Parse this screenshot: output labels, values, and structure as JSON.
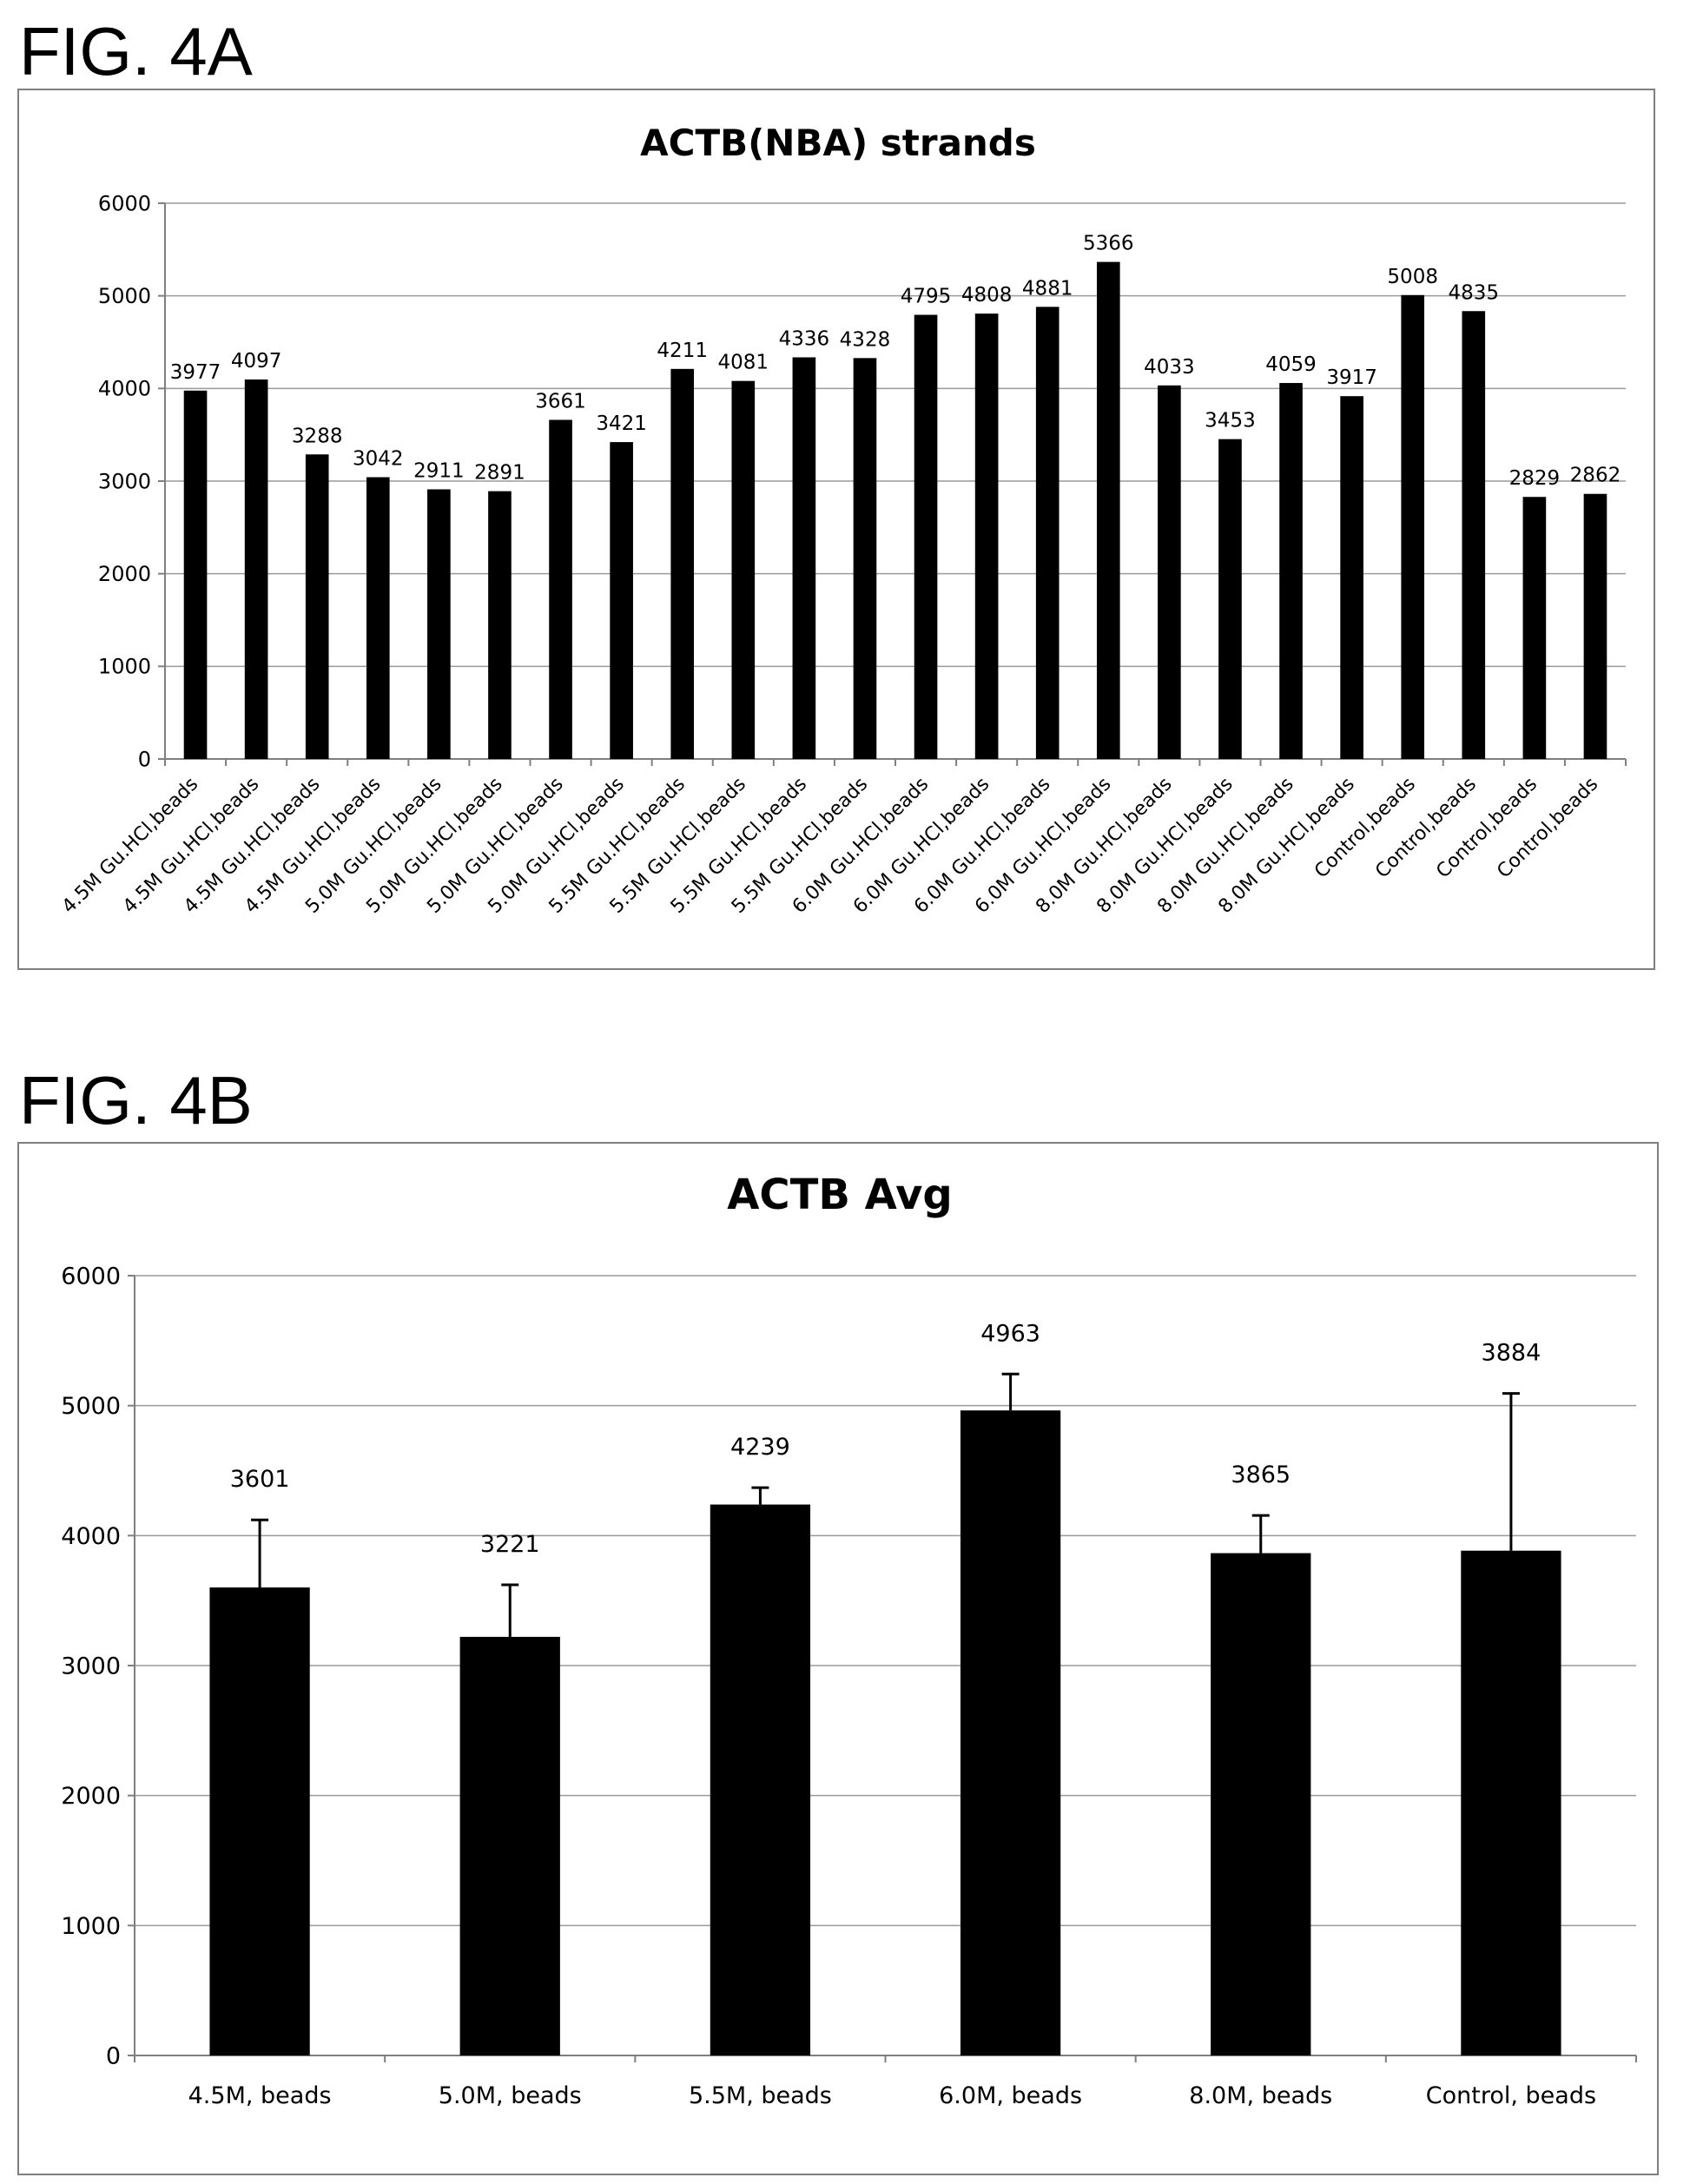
{
  "figures": {
    "a_label": "FIG. 4A",
    "b_label": "FIG. 4B"
  },
  "chart_data": [
    {
      "type": "bar",
      "title": "ACTB(NBA) strands",
      "xlabel": "",
      "ylabel": "",
      "ylim": [
        0,
        6000
      ],
      "yticks": [
        0,
        1000,
        2000,
        3000,
        4000,
        5000,
        6000
      ],
      "grid": true,
      "categories": [
        "4.5M Gu.HCl,beads",
        "4.5M Gu.HCl,beads",
        "4.5M Gu.HCl,beads",
        "4.5M Gu.HCl,beads",
        "5.0M Gu.HCl,beads",
        "5.0M Gu.HCl,beads",
        "5.0M Gu.HCl,beads",
        "5.0M Gu.HCl,beads",
        "5.5M Gu.HCl,beads",
        "5.5M Gu.HCl,beads",
        "5.5M Gu.HCl,beads",
        "5.5M Gu.HCl,beads",
        "6.0M Gu.HCl,beads",
        "6.0M Gu.HCl,beads",
        "6.0M Gu.HCl,beads",
        "6.0M Gu.HCl,beads",
        "8.0M Gu.HCl,beads",
        "8.0M Gu.HCl,beads",
        "8.0M Gu.HCl,beads",
        "8.0M Gu.HCl,beads",
        "Control,beads",
        "Control,beads",
        "Control,beads",
        "Control,beads"
      ],
      "values": [
        3977,
        4097,
        3288,
        3042,
        2911,
        2891,
        3661,
        3421,
        4211,
        4081,
        4336,
        4328,
        4795,
        4808,
        4881,
        5366,
        4033,
        3453,
        4059,
        3917,
        5008,
        4835,
        2829,
        2862
      ],
      "bar_color": "#000000"
    },
    {
      "type": "bar",
      "title": "ACTB Avg",
      "xlabel": "",
      "ylabel": "",
      "ylim": [
        0,
        6000
      ],
      "yticks": [
        0,
        1000,
        2000,
        3000,
        4000,
        5000,
        6000
      ],
      "grid": true,
      "categories": [
        "4.5M, beads",
        "5.0M, beads",
        "5.5M, beads",
        "6.0M, beads",
        "8.0M, beads",
        "Control, beads"
      ],
      "values": [
        3601,
        3221,
        4239,
        4963,
        3865,
        3884
      ],
      "error_upper": [
        520,
        400,
        130,
        280,
        290,
        1210
      ],
      "bar_color": "#000000"
    }
  ]
}
